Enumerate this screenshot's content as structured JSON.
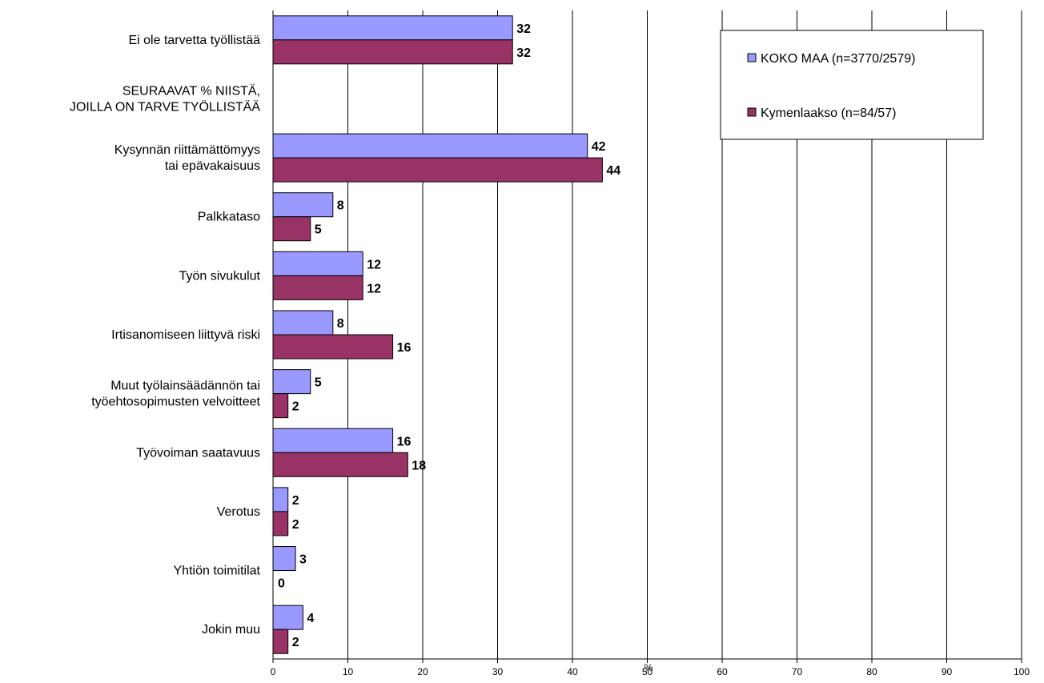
{
  "chart_data": {
    "type": "bar",
    "orientation": "horizontal",
    "categories": [
      [
        "Ei ole tarvetta työllistää"
      ],
      [
        "SEURAAVAT % NIISTÄ,",
        "JOILLA ON TARVE TYÖLLISTÄÄ"
      ],
      [
        "Kysynnän riittämättömyys",
        "tai epävakaisuus"
      ],
      [
        "Palkkataso"
      ],
      [
        "Työn sivukulut"
      ],
      [
        "Irtisanomiseen liittyvä riski"
      ],
      [
        "Muut työlainsäädännön tai",
        "työehtosopimusten velvoitteet"
      ],
      [
        "Työvoiman saatavuus"
      ],
      [
        "Verotus"
      ],
      [
        "Yhtiön toimitilat"
      ],
      [
        "Jokin muu"
      ]
    ],
    "series": [
      {
        "name": "KOKO MAA (n=3770/2579)",
        "color": "#9999ff",
        "values": [
          32,
          null,
          42,
          8,
          12,
          8,
          5,
          16,
          2,
          3,
          4
        ]
      },
      {
        "name": "Kymenlaakso (n=84/57)",
        "color": "#993366",
        "values": [
          32,
          null,
          44,
          5,
          12,
          16,
          2,
          18,
          2,
          0,
          2
        ]
      }
    ],
    "xlim": [
      0,
      100
    ],
    "xticks": [
      0,
      10,
      20,
      30,
      40,
      50,
      60,
      70,
      80,
      90,
      100
    ],
    "xlabel": "%",
    "gridlines": "vertical",
    "legend_position": "top-right"
  }
}
